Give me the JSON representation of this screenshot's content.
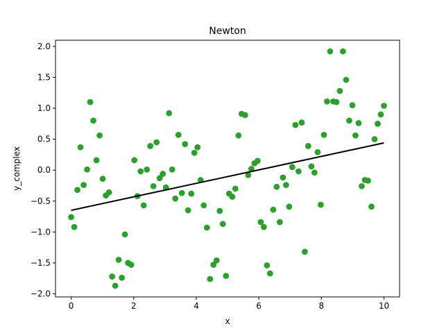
{
  "chart_data": {
    "type": "scatter",
    "title": "Newton",
    "xlabel": "x",
    "ylabel": "y_complex",
    "xlim": [
      -0.5,
      10.5
    ],
    "ylim": [
      -2.05,
      2.1
    ],
    "xticks": [
      0,
      2,
      4,
      6,
      8,
      10
    ],
    "xtick_labels": [
      "0",
      "2",
      "4",
      "6",
      "8",
      "10"
    ],
    "yticks": [
      -2.0,
      -1.5,
      -1.0,
      -0.5,
      0.0,
      0.5,
      1.0,
      1.5,
      2.0
    ],
    "ytick_labels": [
      "−2.0",
      "−1.5",
      "−1.0",
      "−0.5",
      "0.0",
      "0.5",
      "1.0",
      "1.5",
      "2.0"
    ],
    "grid": false,
    "series": [
      {
        "kind": "scatter",
        "color": "#2ca02c",
        "points": [
          [
            0.0,
            -0.76
          ],
          [
            0.1,
            -0.92
          ],
          [
            0.2,
            -0.32
          ],
          [
            0.3,
            0.37
          ],
          [
            0.4,
            -0.24
          ],
          [
            0.51,
            0.01
          ],
          [
            0.61,
            1.1
          ],
          [
            0.71,
            0.8
          ],
          [
            0.81,
            0.16
          ],
          [
            0.91,
            0.56
          ],
          [
            1.01,
            -0.14
          ],
          [
            1.11,
            -0.41
          ],
          [
            1.21,
            -0.36
          ],
          [
            1.31,
            -1.72
          ],
          [
            1.41,
            -1.87
          ],
          [
            1.52,
            -1.45
          ],
          [
            1.62,
            -1.74
          ],
          [
            1.72,
            -1.04
          ],
          [
            1.82,
            -1.5
          ],
          [
            1.92,
            -1.53
          ],
          [
            2.02,
            0.16
          ],
          [
            2.12,
            -0.42
          ],
          [
            2.22,
            -0.02
          ],
          [
            2.32,
            -0.57
          ],
          [
            2.42,
            0.01
          ],
          [
            2.53,
            0.39
          ],
          [
            2.63,
            -0.26
          ],
          [
            2.73,
            0.45
          ],
          [
            2.83,
            -0.13
          ],
          [
            2.93,
            -0.06
          ],
          [
            3.03,
            -0.28
          ],
          [
            3.13,
            0.92
          ],
          [
            3.23,
            0.01
          ],
          [
            3.33,
            -0.46
          ],
          [
            3.43,
            0.57
          ],
          [
            3.54,
            -0.37
          ],
          [
            3.64,
            0.42
          ],
          [
            3.74,
            -0.65
          ],
          [
            3.84,
            -0.38
          ],
          [
            3.94,
            0.28
          ],
          [
            4.04,
            0.37
          ],
          [
            4.14,
            -0.16
          ],
          [
            4.24,
            -0.57
          ],
          [
            4.34,
            -0.93
          ],
          [
            4.44,
            -1.76
          ],
          [
            4.55,
            -1.53
          ],
          [
            4.65,
            -1.46
          ],
          [
            4.75,
            -0.66
          ],
          [
            4.85,
            -0.87
          ],
          [
            4.95,
            -1.71
          ],
          [
            5.05,
            -0.38
          ],
          [
            5.15,
            -0.43
          ],
          [
            5.25,
            -0.3
          ],
          [
            5.35,
            0.56
          ],
          [
            5.45,
            0.91
          ],
          [
            5.56,
            0.89
          ],
          [
            5.66,
            -0.08
          ],
          [
            5.76,
            0.02
          ],
          [
            5.86,
            0.11
          ],
          [
            5.96,
            0.15
          ],
          [
            6.06,
            -0.84
          ],
          [
            6.16,
            -0.92
          ],
          [
            6.26,
            -1.54
          ],
          [
            6.36,
            -1.67
          ],
          [
            6.46,
            -0.64
          ],
          [
            6.57,
            -0.27
          ],
          [
            6.67,
            -0.84
          ],
          [
            6.77,
            -0.12
          ],
          [
            6.87,
            -0.24
          ],
          [
            6.97,
            -0.59
          ],
          [
            7.07,
            0.05
          ],
          [
            7.17,
            0.73
          ],
          [
            7.27,
            -0.02
          ],
          [
            7.37,
            0.77
          ],
          [
            7.47,
            -1.32
          ],
          [
            7.58,
            0.39
          ],
          [
            7.68,
            0.06
          ],
          [
            7.78,
            -0.04
          ],
          [
            7.88,
            0.29
          ],
          [
            7.98,
            -0.56
          ],
          [
            8.08,
            0.57
          ],
          [
            8.18,
            1.11
          ],
          [
            8.28,
            1.92
          ],
          [
            8.38,
            1.11
          ],
          [
            8.48,
            1.1
          ],
          [
            8.59,
            1.28
          ],
          [
            8.69,
            1.92
          ],
          [
            8.79,
            1.46
          ],
          [
            8.89,
            0.8
          ],
          [
            8.99,
            1.05
          ],
          [
            9.09,
            0.56
          ],
          [
            9.19,
            0.76
          ],
          [
            9.29,
            -0.26
          ],
          [
            9.39,
            -0.16
          ],
          [
            9.49,
            -0.17
          ],
          [
            9.6,
            -0.59
          ],
          [
            9.7,
            0.5
          ],
          [
            9.8,
            0.75
          ],
          [
            9.9,
            0.9
          ],
          [
            10.0,
            1.04
          ]
        ]
      },
      {
        "kind": "line",
        "color": "#000000",
        "points": [
          [
            0,
            -0.65
          ],
          [
            10,
            0.44
          ]
        ]
      }
    ]
  }
}
